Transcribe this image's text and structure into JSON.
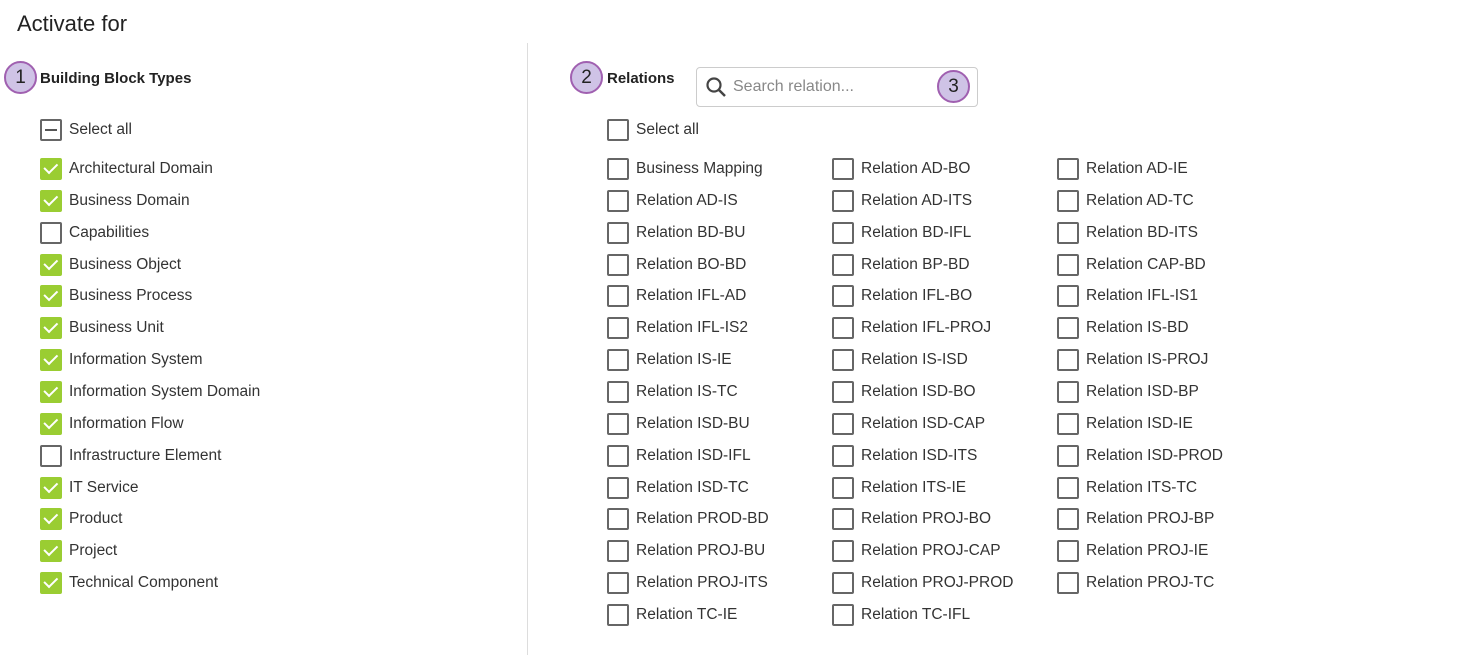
{
  "title": "Activate for",
  "colors": {
    "checked": "#9acd32",
    "badge_fill": "#cfc3e6",
    "badge_border": "#a060b0"
  },
  "left": {
    "badge": "1",
    "heading": "Building Block Types",
    "select_all": {
      "label": "Select all",
      "state": "indeterminate"
    },
    "items": [
      {
        "label": "Architectural Domain",
        "checked": true
      },
      {
        "label": "Business Domain",
        "checked": true
      },
      {
        "label": "Capabilities",
        "checked": false
      },
      {
        "label": "Business Object",
        "checked": true
      },
      {
        "label": "Business Process",
        "checked": true
      },
      {
        "label": "Business Unit",
        "checked": true
      },
      {
        "label": "Information System",
        "checked": true
      },
      {
        "label": "Information System Domain",
        "checked": true
      },
      {
        "label": "Information Flow",
        "checked": true
      },
      {
        "label": "Infrastructure Element",
        "checked": false
      },
      {
        "label": "IT Service",
        "checked": true
      },
      {
        "label": "Product",
        "checked": true
      },
      {
        "label": "Project",
        "checked": true
      },
      {
        "label": "Technical Component",
        "checked": true
      }
    ]
  },
  "right": {
    "badge": "2",
    "heading": "Relations",
    "search": {
      "placeholder": "Search relation...",
      "value": "",
      "badge": "3",
      "icon": "search-icon"
    },
    "select_all": {
      "label": "Select all",
      "state": "unchecked"
    },
    "items": [
      "Business Mapping",
      "Relation AD-BO",
      "Relation AD-IE",
      "Relation AD-IS",
      "Relation AD-ITS",
      "Relation AD-TC",
      "Relation BD-BU",
      "Relation BD-IFL",
      "Relation BD-ITS",
      "Relation BO-BD",
      "Relation BP-BD",
      "Relation CAP-BD",
      "Relation IFL-AD",
      "Relation IFL-BO",
      "Relation IFL-IS1",
      "Relation IFL-IS2",
      "Relation IFL-PROJ",
      "Relation IS-BD",
      "Relation IS-IE",
      "Relation IS-ISD",
      "Relation IS-PROJ",
      "Relation IS-TC",
      "Relation ISD-BO",
      "Relation ISD-BP",
      "Relation ISD-BU",
      "Relation ISD-CAP",
      "Relation ISD-IE",
      "Relation ISD-IFL",
      "Relation ISD-ITS",
      "Relation ISD-PROD",
      "Relation ISD-TC",
      "Relation ITS-IE",
      "Relation ITS-TC",
      "Relation PROD-BD",
      "Relation PROJ-BO",
      "Relation PROJ-BP",
      "Relation PROJ-BU",
      "Relation PROJ-CAP",
      "Relation PROJ-IE",
      "Relation PROJ-ITS",
      "Relation PROJ-PROD",
      "Relation PROJ-TC",
      "Relation TC-IE",
      "Relation TC-IFL"
    ]
  }
}
